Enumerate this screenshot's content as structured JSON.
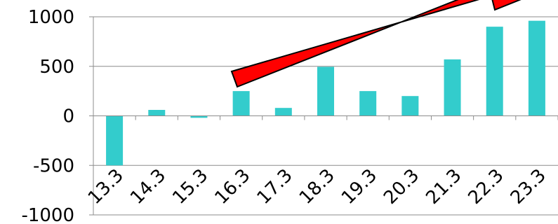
{
  "chart_data": {
    "type": "bar",
    "categories": [
      "13.3",
      "14.3",
      "15.3",
      "16.3",
      "17.3",
      "18.3",
      "19.3",
      "20.3",
      "21.3",
      "22.3",
      "23.3"
    ],
    "values": [
      -500,
      60,
      -20,
      250,
      80,
      495,
      250,
      200,
      570,
      900,
      960
    ],
    "ylim": [
      -1000,
      1000
    ],
    "yticks": [
      "1000",
      "500",
      "0",
      "-500",
      "-1000"
    ],
    "ytick_values": [
      1000,
      500,
      0,
      -500,
      -1000
    ],
    "grid": true,
    "bar_color": "#33cccc",
    "annotation": {
      "shape": "trend-arrow",
      "fill": "#ff0000",
      "stroke": "#000000"
    }
  }
}
